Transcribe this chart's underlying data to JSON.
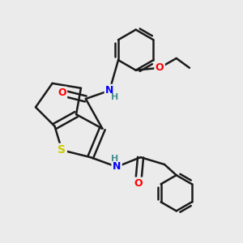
{
  "background_color": "#ebebeb",
  "bond_color": "#1a1a1a",
  "bond_width": 1.8,
  "dbo": 0.12,
  "atom_colors": {
    "N": "#0000ff",
    "O": "#ff0000",
    "S": "#cccc00",
    "H": "#4a9090",
    "C": "#1a1a1a"
  },
  "font_size_atom": 9,
  "font_size_H": 8
}
